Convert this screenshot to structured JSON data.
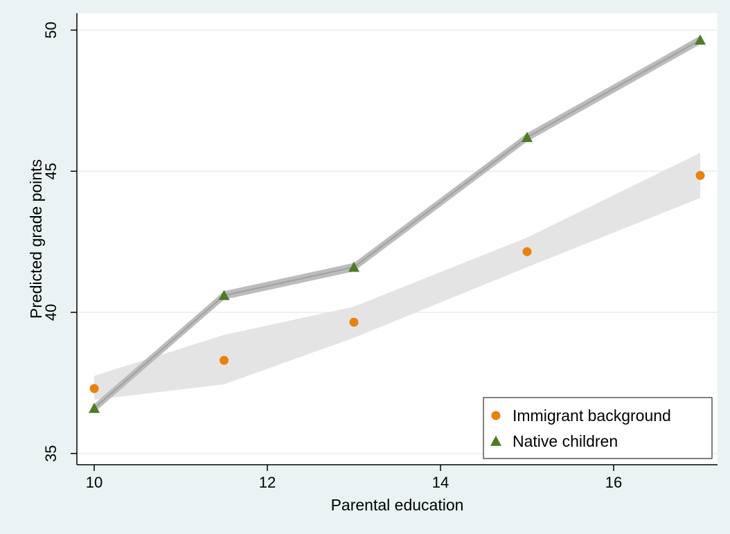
{
  "chart_data": {
    "type": "scatter",
    "title": "",
    "xlabel": "Parental education",
    "ylabel": "Predicted grade points",
    "xlim": [
      9.8,
      17.2
    ],
    "ylim": [
      34.6,
      50.6
    ],
    "xticks": [
      10,
      12,
      14,
      16
    ],
    "yticks": [
      35,
      40,
      45,
      50
    ],
    "grid": true,
    "legend_position": "bottom-right",
    "series": [
      {
        "name": "Immigrant background",
        "marker": "circle",
        "color": "#e8820c",
        "x": [
          10,
          11.5,
          13,
          15,
          17
        ],
        "y": [
          37.3,
          38.3,
          39.65,
          42.15,
          44.85
        ],
        "ci_low": [
          36.9,
          37.45,
          39.1,
          41.6,
          44.05
        ],
        "ci_high": [
          37.75,
          39.2,
          40.2,
          42.65,
          45.65
        ],
        "band_color": "#e3e3e3"
      },
      {
        "name": "Native children",
        "marker": "triangle",
        "color": "#4f7a28",
        "x": [
          10,
          11.5,
          13,
          15,
          17
        ],
        "y": [
          36.6,
          40.6,
          41.6,
          46.2,
          49.65
        ],
        "ci_low": [
          36.45,
          40.45,
          41.45,
          46.05,
          49.5
        ],
        "ci_high": [
          36.75,
          40.75,
          41.75,
          46.35,
          49.8
        ],
        "band_color": "#b8b8b8"
      }
    ]
  },
  "colors": {
    "outer_background": "#eaf2f3",
    "plot_background": "#ffffff",
    "grid": "#eaf2f3"
  }
}
